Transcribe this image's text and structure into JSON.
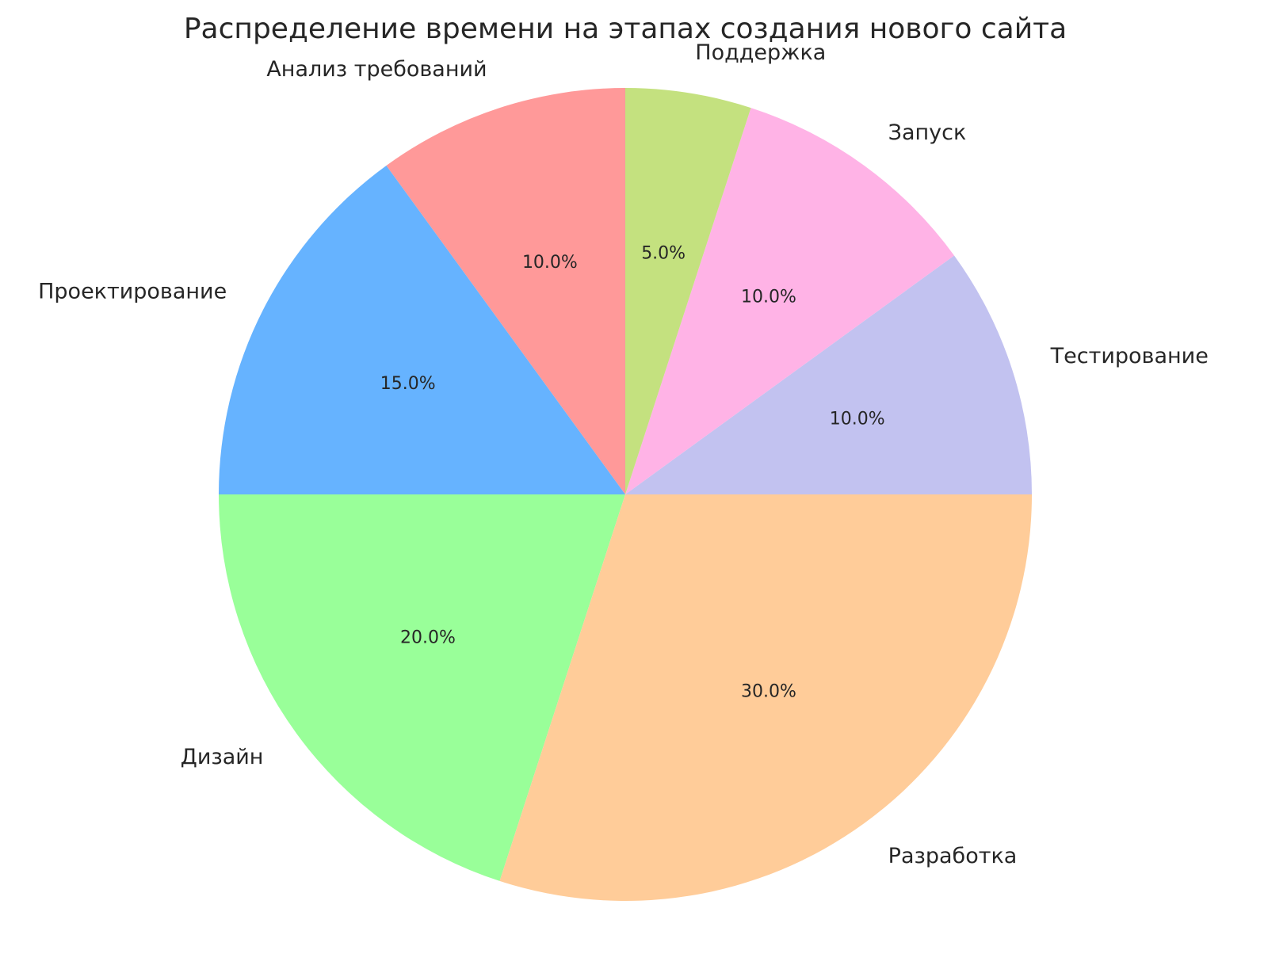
{
  "chart_data": {
    "type": "pie",
    "title": "Распределение времени на этапах создания нового сайта",
    "start_angle_deg": 90,
    "direction": "counterclockwise",
    "slices": [
      {
        "label": "Анализ требований",
        "value": 10.0,
        "pct_label": "10.0%",
        "color": "#ff9999"
      },
      {
        "label": "Проектирование",
        "value": 15.0,
        "pct_label": "15.0%",
        "color": "#66b3ff"
      },
      {
        "label": "Дизайн",
        "value": 20.0,
        "pct_label": "20.0%",
        "color": "#99ff99"
      },
      {
        "label": "Разработка",
        "value": 30.0,
        "pct_label": "30.0%",
        "color": "#ffcc99"
      },
      {
        "label": "Тестирование",
        "value": 10.0,
        "pct_label": "10.0%",
        "color": "#c2c2f0"
      },
      {
        "label": "Запуск",
        "value": 10.0,
        "pct_label": "10.0%",
        "color": "#ffb3e6"
      },
      {
        "label": "Поддержка",
        "value": 5.0,
        "pct_label": "5.0%",
        "color": "#c4e17f"
      }
    ]
  }
}
